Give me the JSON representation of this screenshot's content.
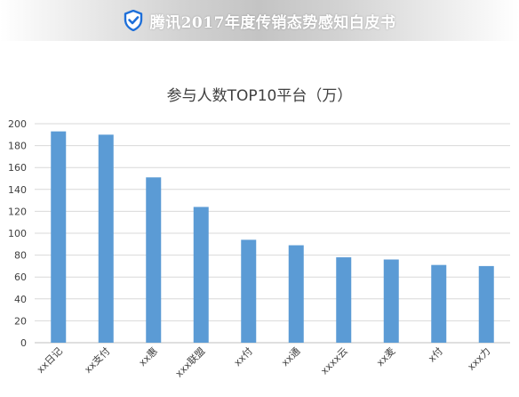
{
  "header": {
    "title": "腾讯2017年度传销态势感知白皮书",
    "logo_icon": "shield-check-icon",
    "logo_color": "#1e6fd9"
  },
  "chart_data": {
    "type": "bar",
    "title": "参与人数TOP10平台（万）",
    "categories": [
      "xx日记",
      "xx支付",
      "xx惠",
      "xxx联盟",
      "xx付",
      "xx通",
      "xxxx云",
      "xx麦",
      "x付",
      "xxx力"
    ],
    "values": [
      193,
      190,
      151,
      124,
      94,
      89,
      78,
      76,
      71,
      70
    ],
    "ylim": [
      0,
      200
    ],
    "yticks": [
      0,
      20,
      40,
      60,
      80,
      100,
      120,
      140,
      160,
      180,
      200
    ],
    "grid": true,
    "bar_color": "#5b9bd5"
  }
}
